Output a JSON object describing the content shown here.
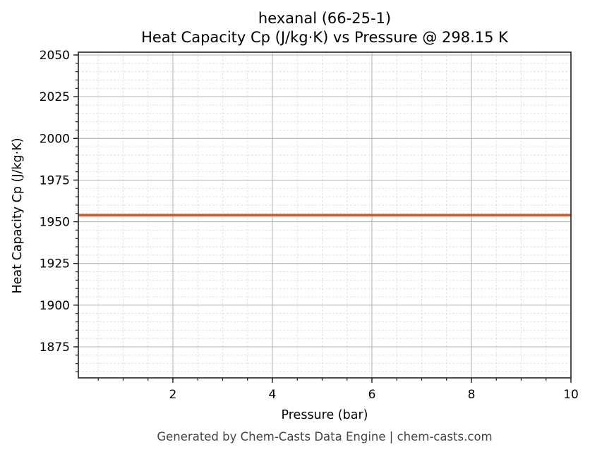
{
  "chart_data": {
    "type": "line",
    "title": "hexanal (66-25-1)",
    "subtitle": "Heat Capacity Cp (J/kg·K) vs Pressure @ 298.15 K",
    "xlabel": "Pressure (bar)",
    "ylabel": "Heat Capacity Cp (J/kg·K)",
    "xlim": [
      0.1,
      10
    ],
    "ylim": [
      1856.4,
      2051.7
    ],
    "x_ticks": [
      2,
      4,
      6,
      8,
      10
    ],
    "y_ticks": [
      1875,
      1900,
      1925,
      1950,
      1975,
      2000,
      2025,
      2050
    ],
    "x_minor_step": 0.5,
    "y_minor_step": 5,
    "grid": true,
    "legend": null,
    "series": [
      {
        "name": "Cp",
        "color": "#D35424",
        "x": [
          0.1,
          10
        ],
        "values": [
          1954,
          1954
        ]
      }
    ]
  },
  "footer": "Generated by Chem-Casts Data Engine | chem-casts.com"
}
